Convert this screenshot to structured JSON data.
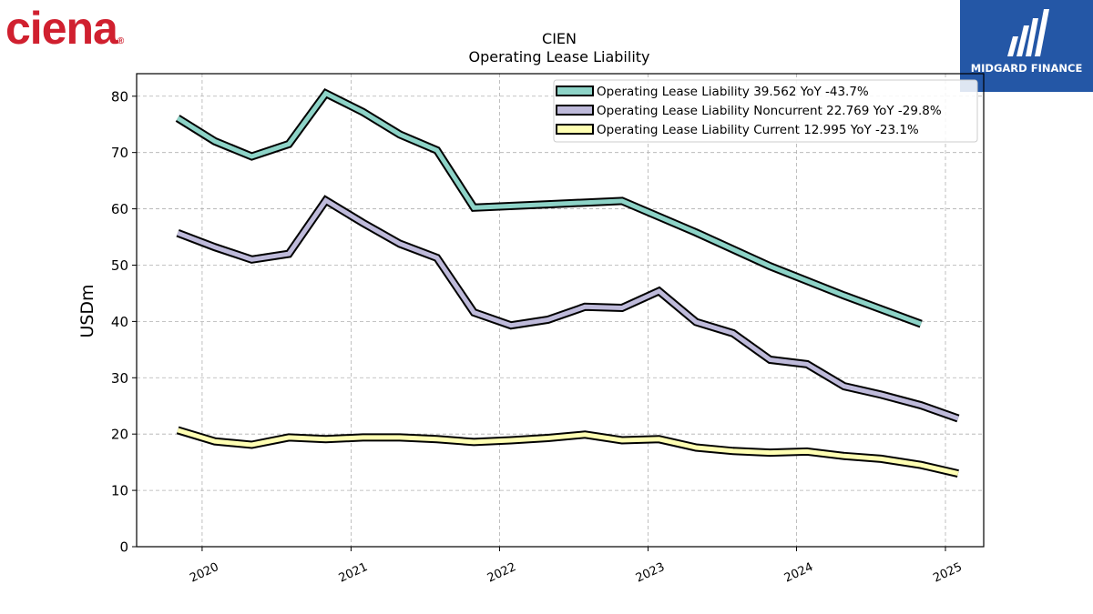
{
  "brand": {
    "company_logo_text": "ciena",
    "company_logo_color": "#d0202f"
  },
  "publisher": {
    "name": "MIDGARD FINANCE",
    "bg_color": "#2457a6"
  },
  "chart_data": {
    "type": "line",
    "title": "CIEN",
    "subtitle": "Operating Lease Liability",
    "ylabel": "USDm",
    "xlabel": "",
    "ylim": [
      0,
      84
    ],
    "xlim": [
      "2019-07-24",
      "2025-04-05"
    ],
    "yticks": [
      0,
      10,
      20,
      30,
      40,
      50,
      60,
      70,
      80
    ],
    "xticks": [
      "2020",
      "2021",
      "2022",
      "2023",
      "2024",
      "2025"
    ],
    "grid": true,
    "legend_position": "top-right",
    "series": [
      {
        "name": "Operating Lease Liability",
        "legend_label": "Operating Lease Liability  39.562 YoY -43.7%",
        "color": "#8dd3c7",
        "x": [
          "2019-11-02",
          "2020-02-01",
          "2020-05-02",
          "2020-08-01",
          "2020-10-31",
          "2021-01-30",
          "2021-05-01",
          "2021-07-31",
          "2021-10-30",
          "2022-04-30",
          "2022-10-29",
          "2023-04-29",
          "2023-10-28",
          "2024-04-27",
          "2024-11-02"
        ],
        "y": [
          76.1,
          72.0,
          69.3,
          71.5,
          80.5,
          77.2,
          73.2,
          70.4,
          60.2,
          60.8,
          61.4,
          55.8,
          49.8,
          44.6,
          39.562
        ]
      },
      {
        "name": "Operating Lease Liability Noncurrent",
        "legend_label": "Operating Lease Liability Noncurrent  22.769 YoY -29.8%",
        "color": "#bebada",
        "x": [
          "2019-11-02",
          "2020-02-01",
          "2020-05-02",
          "2020-08-01",
          "2020-10-31",
          "2021-01-30",
          "2021-05-01",
          "2021-07-31",
          "2021-10-30",
          "2022-01-29",
          "2022-04-30",
          "2022-07-30",
          "2022-10-29",
          "2023-01-28",
          "2023-04-29",
          "2023-07-29",
          "2023-10-28",
          "2024-01-27",
          "2024-04-27",
          "2024-07-27",
          "2024-11-02",
          "2025-02-01"
        ],
        "y": [
          55.7,
          53.2,
          51.0,
          52.0,
          61.5,
          57.5,
          53.8,
          51.3,
          41.6,
          39.3,
          40.3,
          42.6,
          42.4,
          45.4,
          39.9,
          37.9,
          33.2,
          32.4,
          28.5,
          27.0,
          25.1,
          22.769
        ]
      },
      {
        "name": "Operating Lease Liability Current",
        "legend_label": "Operating Lease Liability Current  12.995 YoY -23.1%",
        "color": "#ffffb3",
        "x": [
          "2019-11-02",
          "2020-02-01",
          "2020-05-02",
          "2020-08-01",
          "2020-10-31",
          "2021-01-30",
          "2021-05-01",
          "2021-07-31",
          "2021-10-30",
          "2022-01-29",
          "2022-04-30",
          "2022-07-30",
          "2022-10-29",
          "2023-01-28",
          "2023-04-29",
          "2023-07-29",
          "2023-10-28",
          "2024-01-27",
          "2024-04-27",
          "2024-07-27",
          "2024-11-02",
          "2025-02-01"
        ],
        "y": [
          20.7,
          18.7,
          18.1,
          19.4,
          19.1,
          19.4,
          19.4,
          19.1,
          18.6,
          18.9,
          19.3,
          19.9,
          18.9,
          19.1,
          17.6,
          17.0,
          16.7,
          16.9,
          16.1,
          15.6,
          14.5,
          12.995
        ]
      }
    ]
  }
}
